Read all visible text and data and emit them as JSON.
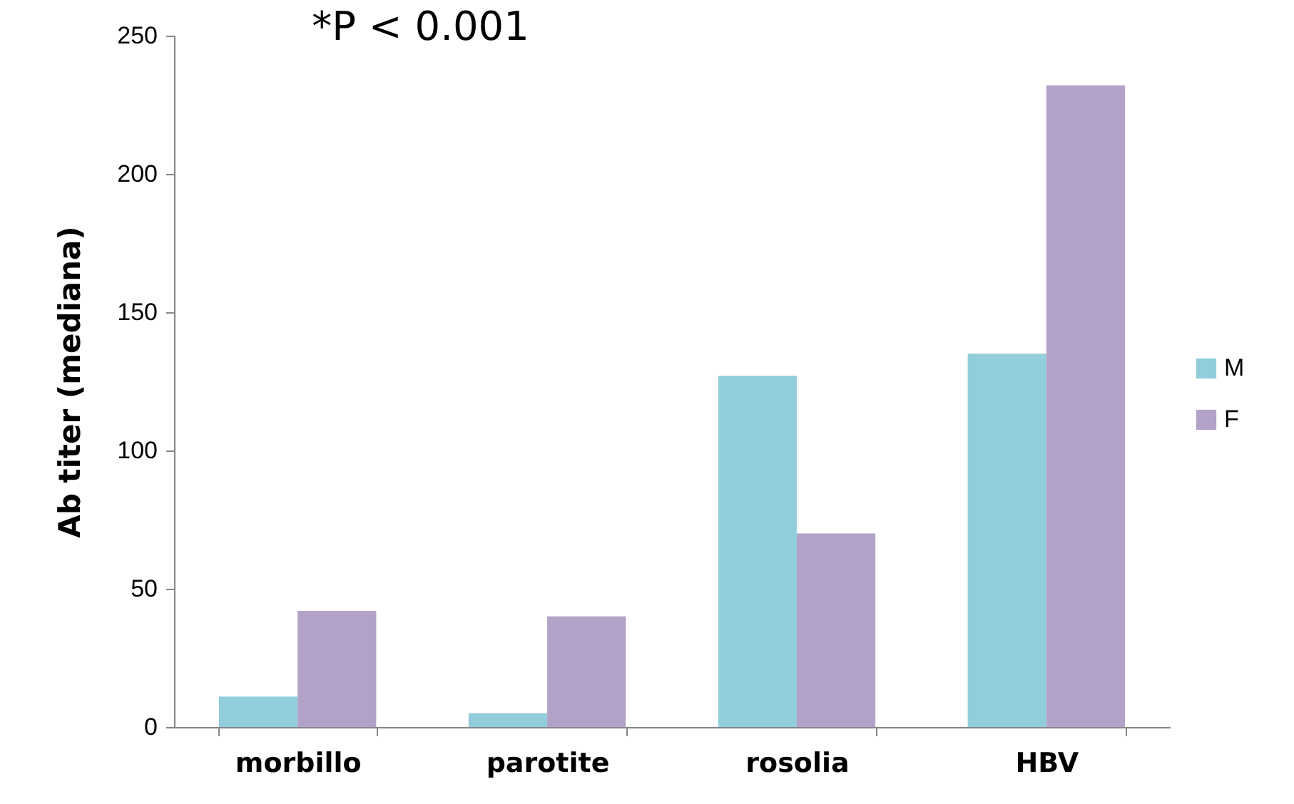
{
  "chart_data": {
    "type": "bar",
    "ylabel": "Ab titer (mediana)",
    "annotations": [
      "*P < 0.001"
    ],
    "categories": [
      "morbillo",
      "parotite",
      "rosolia",
      "HBV"
    ],
    "series": [
      {
        "name": "M",
        "color": "#92cddc",
        "values": [
          11,
          5,
          127,
          135
        ]
      },
      {
        "name": "F",
        "color": "#b3a2c7",
        "values": [
          42,
          40,
          70,
          232
        ]
      }
    ],
    "ylim": [
      0,
      250
    ],
    "yticks": [
      0,
      50,
      100,
      150,
      200,
      250
    ],
    "grid": false,
    "legend": "right"
  }
}
